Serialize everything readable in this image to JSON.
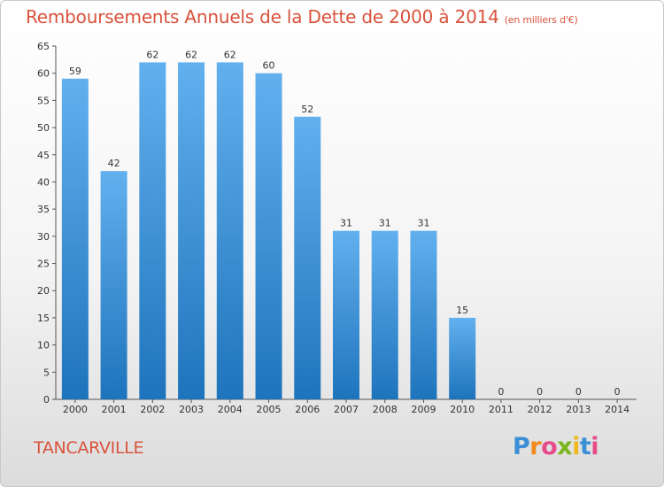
{
  "title": "Remboursements Annuels de la Dette de 2000 à 2014",
  "subtitle": "(en milliers d'€)",
  "town": "TANCARVILLE",
  "logo": {
    "letters": [
      "P",
      "r",
      "o",
      "x",
      "i",
      "t",
      "i"
    ],
    "colors": [
      "#3a8fd6",
      "#f08a1c",
      "#e64b8a",
      "#7ab51d",
      "#f0b81c",
      "#3a8fd6",
      "#e64b8a"
    ]
  },
  "chart_data": {
    "type": "bar",
    "title": "Remboursements Annuels de la Dette de 2000 à 2014",
    "categories": [
      "2000",
      "2001",
      "2002",
      "2003",
      "2004",
      "2005",
      "2006",
      "2007",
      "2008",
      "2009",
      "2010",
      "2011",
      "2012",
      "2013",
      "2014"
    ],
    "values": [
      59,
      42,
      62,
      62,
      62,
      60,
      52,
      31,
      31,
      31,
      15,
      0,
      0,
      0,
      0
    ],
    "ylim": [
      0,
      65
    ],
    "yticks": [
      0,
      5,
      10,
      15,
      20,
      25,
      30,
      35,
      40,
      45,
      50,
      55,
      60,
      65
    ],
    "grid": false,
    "bar_color_top": "#62b0ee",
    "bar_color_bottom": "#1e74bc"
  }
}
